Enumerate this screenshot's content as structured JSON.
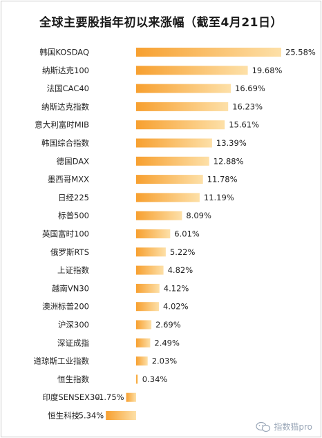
{
  "chart_data": {
    "type": "bar",
    "orientation": "horizontal",
    "title": "全球主要股指年初以来涨幅（截至4月21日）",
    "categories": [
      "韩国KOSDAQ",
      "纳斯达克100",
      "法国CAC40",
      "纳斯达克指数",
      "意大利富时MIB",
      "韩国综合指数",
      "德国DAX",
      "墨西哥MXX",
      "日经225",
      "标普500",
      "英国富时100",
      "俄罗斯RTS",
      "上证指数",
      "越南VN30",
      "澳洲标普200",
      "沪深300",
      "深证成指",
      "道琼斯工业指数",
      "恒生指数",
      "印度SENSEX30",
      "恒生科技"
    ],
    "values": [
      25.58,
      19.68,
      16.69,
      16.23,
      15.61,
      13.39,
      12.88,
      11.78,
      11.19,
      8.09,
      6.01,
      5.22,
      4.82,
      4.12,
      4.02,
      2.69,
      2.49,
      2.03,
      0.34,
      -1.75,
      -5.34
    ],
    "value_labels": [
      "25.58%",
      "19.68%",
      "16.69%",
      "16.23%",
      "15.61%",
      "13.39%",
      "12.88%",
      "11.78%",
      "11.19%",
      "8.09%",
      "6.01%",
      "5.22%",
      "4.82%",
      "4.12%",
      "4.02%",
      "2.69%",
      "2.49%",
      "2.03%",
      "0.34%",
      "-1.75%",
      "-5.34%"
    ],
    "xlim": [
      -5.34,
      25.58
    ],
    "grid": false,
    "legend": "none",
    "bar_gradient": [
      "#f7a030",
      "#fde0a8"
    ]
  },
  "watermark": {
    "icon": "wechat-icon",
    "text": "指数猫pro"
  }
}
